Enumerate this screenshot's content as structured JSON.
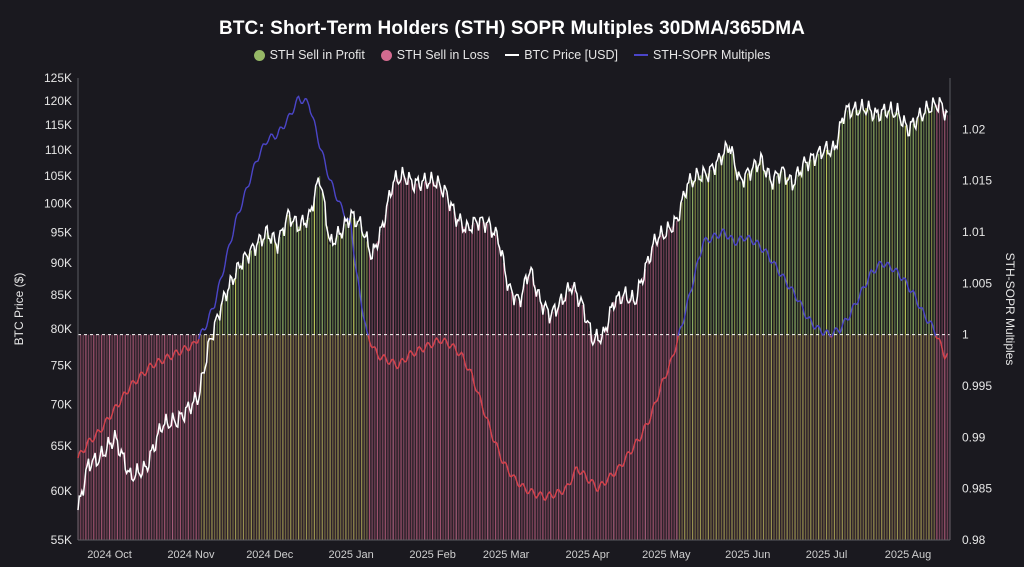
{
  "chart_data": {
    "type": "line",
    "title": "BTC: Short-Term Holders (STH) SOPR Multiples 30DMA/365DMA",
    "legend": [
      {
        "label": "STH Sell in Profit",
        "kind": "dot",
        "color": "#96b866"
      },
      {
        "label": "STH Sell in Loss",
        "kind": "dot",
        "color": "#d36a8f"
      },
      {
        "label": "BTC Price [USD]",
        "kind": "line",
        "color": "#ffffff"
      },
      {
        "label": "STH-SOPR Multiples",
        "kind": "line",
        "color": "#4b45c8"
      }
    ],
    "ylabel_left": "BTC Price ($)",
    "ylabel_right": "STH-SOPR Multiples",
    "y_left_scale": "log",
    "y_left_range": [
      55000,
      125000
    ],
    "y_left_ticks": [
      {
        "value": 55000,
        "label": "55K"
      },
      {
        "value": 60000,
        "label": "60K"
      },
      {
        "value": 65000,
        "label": "65K"
      },
      {
        "value": 70000,
        "label": "70K"
      },
      {
        "value": 75000,
        "label": "75K"
      },
      {
        "value": 80000,
        "label": "80K"
      },
      {
        "value": 85000,
        "label": "85K"
      },
      {
        "value": 90000,
        "label": "90K"
      },
      {
        "value": 95000,
        "label": "95K"
      },
      {
        "value": 100000,
        "label": "100K"
      },
      {
        "value": 105000,
        "label": "105K"
      },
      {
        "value": 110000,
        "label": "110K"
      },
      {
        "value": 115000,
        "label": "115K"
      },
      {
        "value": 120000,
        "label": "120K"
      },
      {
        "value": 125000,
        "label": "125K"
      }
    ],
    "y_right_range": [
      0.98,
      1.025
    ],
    "y_right_ticks": [
      {
        "value": 0.98,
        "label": "0.98"
      },
      {
        "value": 0.985,
        "label": "0.985"
      },
      {
        "value": 0.99,
        "label": "0.99"
      },
      {
        "value": 0.995,
        "label": "0.995"
      },
      {
        "value": 1.0,
        "label": "1"
      },
      {
        "value": 1.005,
        "label": "1.005"
      },
      {
        "value": 1.01,
        "label": "1.01"
      },
      {
        "value": 1.015,
        "label": "1.015"
      },
      {
        "value": 1.02,
        "label": "1.02"
      }
    ],
    "x_range_days": [
      0,
      332
    ],
    "x_ticks": [
      {
        "day": 12,
        "label": "2024 Oct"
      },
      {
        "day": 43,
        "label": "2024 Nov"
      },
      {
        "day": 73,
        "label": "2024 Dec"
      },
      {
        "day": 104,
        "label": "2025 Jan"
      },
      {
        "day": 135,
        "label": "2025 Feb"
      },
      {
        "day": 163,
        "label": "2025 Mar"
      },
      {
        "day": 194,
        "label": "2025 Apr"
      },
      {
        "day": 224,
        "label": "2025 May"
      },
      {
        "day": 255,
        "label": "2025 Jun"
      },
      {
        "day": 285,
        "label": "2025 Jul"
      },
      {
        "day": 316,
        "label": "2025 Aug"
      }
    ],
    "threshold": 1.0,
    "btc_price": {
      "days": [
        0,
        4,
        8,
        14,
        20,
        26,
        32,
        38,
        42,
        46,
        50,
        56,
        62,
        66,
        72,
        76,
        80,
        84,
        88,
        92,
        96,
        100,
        104,
        108,
        112,
        116,
        120,
        124,
        128,
        132,
        136,
        140,
        144,
        148,
        152,
        156,
        160,
        164,
        168,
        172,
        176,
        180,
        184,
        188,
        192,
        196,
        200,
        204,
        208,
        212,
        216,
        220,
        224,
        228,
        232,
        236,
        240,
        244,
        248,
        252,
        256,
        260,
        264,
        268,
        272,
        276,
        280,
        284,
        288,
        292,
        296,
        300,
        304,
        308,
        312,
        316,
        320,
        324,
        328,
        331
      ],
      "values": [
        58000,
        63000,
        63500,
        66000,
        61500,
        62500,
        67500,
        68000,
        69500,
        71000,
        78000,
        85000,
        90000,
        92000,
        95000,
        93000,
        98000,
        96000,
        97500,
        105000,
        93000,
        95000,
        98000,
        96000,
        91000,
        96000,
        104000,
        105000,
        103500,
        104000,
        104000,
        102000,
        97500,
        95500,
        97000,
        96500,
        94000,
        86000,
        84000,
        89000,
        84000,
        82000,
        84000,
        86500,
        83500,
        78500,
        79000,
        84000,
        85000,
        84000,
        89000,
        94000,
        95000,
        97000,
        103500,
        105000,
        105500,
        108000,
        111000,
        104000,
        106000,
        108000,
        104000,
        106000,
        103500,
        107000,
        108500,
        110000,
        110000,
        118000,
        118000,
        118500,
        117000,
        118000,
        117500,
        114000,
        116500,
        118500,
        119500,
        117000
      ]
    },
    "sth_sopr_multiples": {
      "days": [
        0,
        4,
        8,
        12,
        16,
        20,
        24,
        28,
        32,
        36,
        40,
        44,
        48,
        52,
        56,
        60,
        64,
        68,
        72,
        76,
        80,
        84,
        88,
        92,
        96,
        100,
        104,
        106,
        110,
        114,
        118,
        122,
        126,
        130,
        134,
        138,
        142,
        146,
        150,
        154,
        158,
        162,
        166,
        170,
        174,
        178,
        182,
        186,
        190,
        194,
        198,
        202,
        206,
        210,
        214,
        218,
        222,
        226,
        230,
        234,
        238,
        242,
        246,
        250,
        254,
        258,
        262,
        266,
        270,
        274,
        278,
        282,
        286,
        290,
        294,
        298,
        302,
        306,
        310,
        314,
        318,
        322,
        326,
        330
      ],
      "values": [
        0.988,
        0.9895,
        0.9905,
        0.992,
        0.9935,
        0.995,
        0.996,
        0.997,
        0.9975,
        0.998,
        0.9985,
        0.999,
        1.0005,
        1.003,
        1.007,
        1.011,
        1.014,
        1.017,
        1.019,
        1.0195,
        1.021,
        1.023,
        1.0225,
        1.0185,
        1.015,
        1.0125,
        1.0105,
        1.006,
        1.0,
        0.998,
        0.9975,
        0.997,
        0.998,
        0.9985,
        0.999,
        0.9995,
        0.999,
        0.998,
        0.996,
        0.993,
        0.99,
        0.9875,
        0.986,
        0.985,
        0.9845,
        0.9842,
        0.9845,
        0.985,
        0.987,
        0.986,
        0.985,
        0.986,
        0.987,
        0.9885,
        0.99,
        0.992,
        0.995,
        0.9975,
        1.001,
        1.005,
        1.009,
        1.0095,
        1.01,
        1.009,
        1.0095,
        1.009,
        1.008,
        1.0065,
        1.005,
        1.0035,
        1.0015,
        1.0005,
        1.0,
        1.0005,
        1.002,
        1.004,
        1.006,
        1.007,
        1.0065,
        1.0055,
        1.004,
        1.002,
        1.0005,
        0.998
      ]
    }
  }
}
